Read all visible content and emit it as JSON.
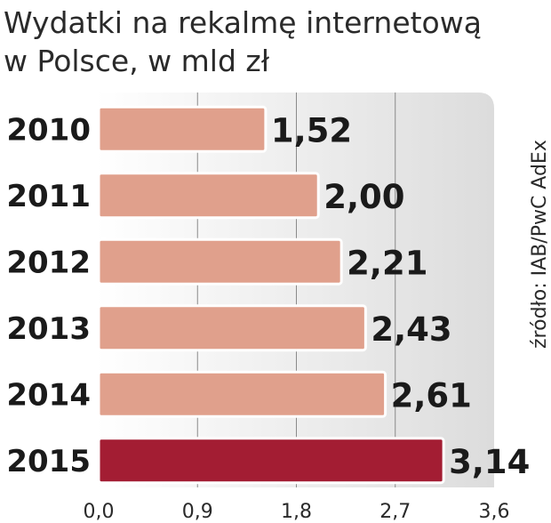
{
  "chart_data": {
    "type": "bar",
    "orientation": "horizontal",
    "title": "Wydatki na rekalmę internetową",
    "subtitle": "w Polsce, w mld zł",
    "categories": [
      "2010",
      "2011",
      "2012",
      "2013",
      "2014",
      "2015"
    ],
    "values": [
      1.52,
      2.0,
      2.21,
      2.43,
      2.61,
      3.14
    ],
    "value_labels": [
      "1,52",
      "2,00",
      "2,21",
      "2,43",
      "2,61",
      "3,14"
    ],
    "xlim": [
      0,
      3.6
    ],
    "xticks": [
      0,
      0.9,
      1.8,
      2.7,
      3.6
    ],
    "xtick_labels": [
      "0,0",
      "0,9",
      "1,8",
      "2,7",
      "3,6"
    ],
    "grid": true,
    "source": "źródło: IAB/PwC AdEx",
    "colors": {
      "bar": "#e0a08c",
      "highlight": "#a31d33",
      "panel": "#e6e6e6",
      "grid": "#8a8a8a"
    },
    "highlight_index": 5
  }
}
